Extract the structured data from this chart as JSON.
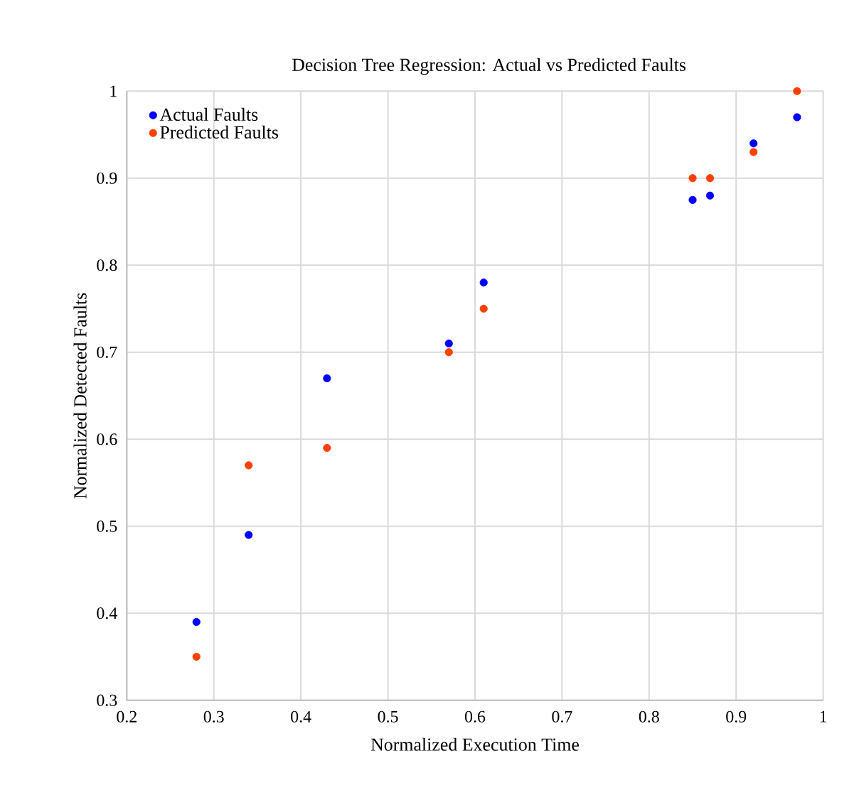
{
  "chart_data": {
    "type": "scatter",
    "title": "Decision Tree Regression: Actual vs Predicted Faults",
    "xlabel": "Normalized Execution Time",
    "ylabel": "Normalized Detected Faults",
    "xlim": [
      0.2,
      1
    ],
    "ylim": [
      0.3,
      1
    ],
    "xticks": [
      0.2,
      0.3,
      0.4,
      0.5,
      0.6,
      0.7,
      0.8,
      0.9,
      1
    ],
    "yticks": [
      0.3,
      0.4,
      0.5,
      0.6,
      0.7,
      0.8,
      0.9,
      1
    ],
    "grid": true,
    "legend": "top left",
    "series": [
      {
        "name": "Actual Faults",
        "color": "#0000ff",
        "x": [
          0.28,
          0.34,
          0.43,
          0.57,
          0.61,
          0.85,
          0.87,
          0.92,
          0.97
        ],
        "values": [
          0.39,
          0.49,
          0.67,
          0.71,
          0.78,
          0.875,
          0.88,
          0.94,
          0.97
        ]
      },
      {
        "name": "Predicted Faults",
        "color": "#ff4000",
        "x": [
          0.28,
          0.34,
          0.43,
          0.57,
          0.61,
          0.85,
          0.87,
          0.92,
          0.97
        ],
        "values": [
          0.35,
          0.57,
          0.59,
          0.7,
          0.75,
          0.9,
          0.9,
          0.93,
          1.0
        ]
      }
    ]
  }
}
